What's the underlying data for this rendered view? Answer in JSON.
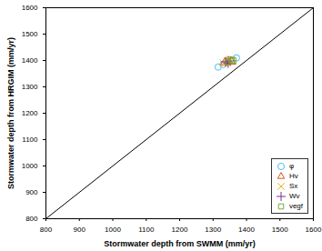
{
  "chart_data": {
    "type": "scatter",
    "x_label": "Stormwater depth from SWMM (mm/yr)",
    "y_label": "Stormwater depth from HRGIM (mm/yr)",
    "xlim": [
      800,
      1600
    ],
    "ylim": [
      800,
      1600
    ],
    "xticks": [
      800,
      900,
      1000,
      1100,
      1200,
      1300,
      1400,
      1500,
      1600
    ],
    "yticks": [
      800,
      900,
      1000,
      1100,
      1200,
      1300,
      1400,
      1500,
      1600
    ],
    "grid": false,
    "legend": "lower right",
    "series": [
      {
        "name": "φ",
        "color": "#4dbeee",
        "marker": "circle",
        "x": [
          1315,
          1330,
          1345,
          1370
        ],
        "values": [
          1375,
          1385,
          1395,
          1410
        ]
      },
      {
        "name": "Hv",
        "color": "#d95319",
        "marker": "triangle",
        "x": [
          1335,
          1345,
          1355
        ],
        "values": [
          1392,
          1398,
          1395
        ]
      },
      {
        "name": "Sx",
        "color": "#edb120",
        "marker": "times",
        "x": [
          1330,
          1340,
          1350
        ],
        "values": [
          1390,
          1393,
          1400
        ]
      },
      {
        "name": "Wv",
        "color": "#7e2f8e",
        "marker": "plus",
        "x": [
          1338,
          1345,
          1352
        ],
        "values": [
          1395,
          1390,
          1398
        ]
      },
      {
        "name": "vegf",
        "color": "#77ac30",
        "marker": "square",
        "x": [
          1345,
          1355,
          1360
        ],
        "values": [
          1395,
          1402,
          1400
        ]
      }
    ]
  }
}
